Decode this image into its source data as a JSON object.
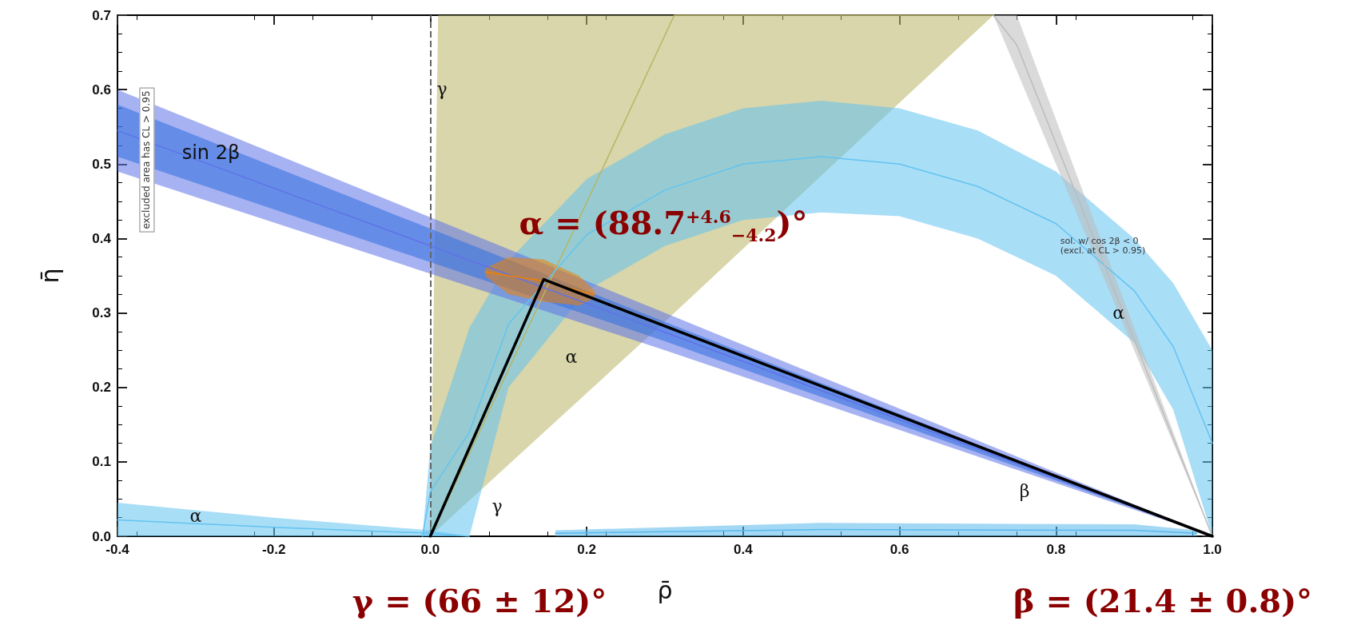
{
  "chart_data": {
    "type": "line",
    "xlabel": "ρ̄",
    "ylabel": "η̄",
    "xlim": [
      -0.4,
      1.0
    ],
    "ylim": [
      0.0,
      0.7
    ],
    "xticks": [
      {
        "value": -0.4,
        "label": "-0.4"
      },
      {
        "value": -0.2,
        "label": "-0.2"
      },
      {
        "value": 0,
        "label": "0.0"
      },
      {
        "value": 0.2,
        "label": "0.2"
      },
      {
        "value": 0.4,
        "label": "0.4"
      },
      {
        "value": 0.6,
        "label": "0.6"
      },
      {
        "value": 0.8,
        "label": "0.8"
      },
      {
        "value": 1.0,
        "label": "1.0"
      }
    ],
    "yticks": [
      {
        "value": 0,
        "label": "0.0"
      },
      0.1,
      0.2,
      0.3,
      0.4,
      0.5,
      0.6,
      0.7
    ],
    "series": [
      {
        "color": "#b8b464",
        "x": [
          0.0,
          0.01,
          0.312,
          0.72
        ],
        "values": [
          0,
          0.022,
          0.7,
          0.7
        ],
        "lower": [
          0,
          0.0097,
          0.3,
          0.7
        ],
        "upper": [
          0,
          0.7,
          0.7,
          0.7
        ]
      },
      {
        "color": "#63c3f0",
        "x": [
          -0.01,
          0.0,
          0.05,
          0.1,
          0.2,
          0.3,
          0.4,
          0.5,
          0.6,
          0.7,
          0.8,
          0.9,
          0.95,
          1.0
        ],
        "values": [
          0,
          0.06,
          0.14,
          0.285,
          0.405,
          0.465,
          0.5,
          0.51,
          0.5,
          0.47,
          0.42,
          0.33,
          0.255,
          0.125
        ],
        "lower": [
          0,
          0,
          0,
          0.2,
          0.33,
          0.39,
          0.425,
          0.435,
          0.43,
          0.4,
          0.35,
          0.26,
          0.17,
          0
        ],
        "upper": [
          0,
          0.12,
          0.28,
          0.37,
          0.48,
          0.54,
          0.575,
          0.585,
          0.575,
          0.545,
          0.49,
          0.4,
          0.34,
          0.25
        ]
      },
      {
        "color": "#63c3f0",
        "x": [
          -0.4,
          -0.2,
          0.0,
          0.05
        ],
        "values": [
          0.022,
          0.012,
          0.004,
          0
        ],
        "lower": [
          0,
          0,
          0,
          0
        ],
        "upper": [
          0.045,
          0.025,
          0.008,
          0
        ]
      },
      {
        "color": "#58b8ec",
        "x": [
          0.16,
          0.5,
          0.9,
          0.98
        ],
        "values": [
          0.004,
          0.009,
          0.008,
          0.004
        ],
        "lower": [
          0,
          0,
          0,
          0
        ],
        "upper": [
          0.008,
          0.018,
          0.016,
          0.008
        ]
      },
      {
        "color": "#bcbcbc",
        "x": [
          0.72,
          0.75,
          1.0
        ],
        "values": [
          0.7,
          0.66,
          0
        ],
        "lower": [
          0.7,
          0.625,
          0
        ],
        "upper": [
          0.7,
          0.7,
          0
        ]
      },
      {
        "color": "#5f73e7",
        "x": [
          -0.4,
          0.3,
          1.0
        ],
        "values": [
          0.545,
          0.274,
          0
        ],
        "lower": [
          0.49,
          0.25,
          0
        ],
        "upper": [
          0.6,
          0.3,
          0
        ]
      },
      {
        "color": "#2f6fe0",
        "x": [
          -0.4,
          0.3,
          1.0
        ],
        "values": [
          null,
          null,
          null
        ],
        "lower": [
          0.51,
          0.262,
          0
        ],
        "upper": [
          0.58,
          0.288,
          0
        ]
      },
      {
        "color": "#f08000",
        "x": [
          0.07,
          0.1,
          0.145,
          0.19,
          0.21
        ],
        "values": [
          0.355,
          0.35,
          0.343,
          0.33,
          0.325
        ],
        "lower": [
          0.35,
          0.325,
          0.315,
          0.31,
          0.32
        ],
        "upper": [
          0.36,
          0.375,
          0.372,
          0.35,
          0.33
        ]
      },
      {
        "color": "#000000",
        "x": [
          0.0,
          0.145,
          1.0
        ],
        "values": [
          0,
          0.345,
          0
        ]
      }
    ],
    "ref_lines": [
      {
        "axis": "x",
        "value": 0,
        "color": "#666666",
        "line_style": "dashed"
      }
    ],
    "annotations": [
      {
        "text": "sol. w/ cos 2β < 0\n(excl. at CL > 0.95)",
        "x": 0.86,
        "y": 0.39
      },
      {
        "text": "α",
        "x": 0.88,
        "y": 0.3
      },
      "sin 2β",
      "γ",
      "α",
      "α",
      "γ",
      "β",
      "α = (88.7$^{+4.6}$$_{−4.2}$)°",
      "excluded area has CL > 0.95",
      "γ = (66 ± 12)°",
      "β = (21.4 ± 0.8)°"
    ]
  }
}
